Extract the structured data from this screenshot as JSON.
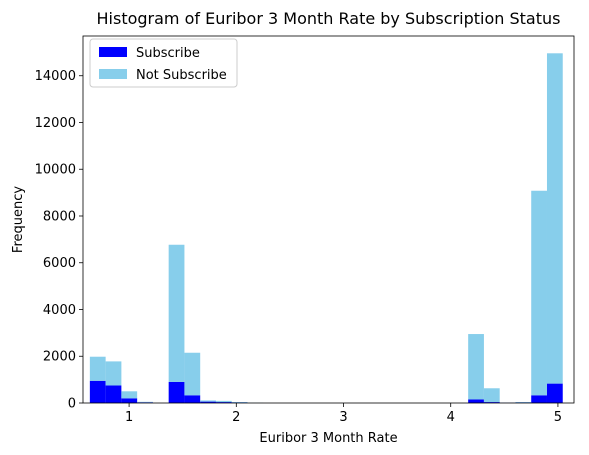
{
  "chart_data": {
    "type": "bar",
    "title": "Histogram of Euribor 3 Month Rate by Subscription Status",
    "xlabel": "Euribor 3 Month Rate",
    "ylabel": "Frequency",
    "xlim": [
      0.57,
      5.15
    ],
    "ylim": [
      0,
      15700
    ],
    "x_ticks": [
      1,
      2,
      3,
      4,
      5
    ],
    "y_ticks": [
      0,
      2000,
      4000,
      6000,
      8000,
      10000,
      12000,
      14000
    ],
    "grid": false,
    "legend_position": "top-left",
    "stacked": true,
    "bin_range": [
      0.634,
      5.045
    ],
    "bin_count": 30,
    "series": [
      {
        "name": "Subscribe",
        "color": "#0000ff",
        "values": [
          950,
          750,
          200,
          30,
          0,
          900,
          330,
          60,
          40,
          20,
          0,
          0,
          0,
          0,
          0,
          0,
          0,
          0,
          0,
          0,
          0,
          0,
          0,
          0,
          150,
          40,
          10,
          20,
          330,
          830
        ]
      },
      {
        "name": "Not Subscribe",
        "color": "#87ceeb",
        "values": [
          1030,
          1030,
          300,
          20,
          0,
          5870,
          1820,
          50,
          50,
          20,
          10,
          0,
          0,
          0,
          0,
          0,
          0,
          0,
          0,
          0,
          0,
          0,
          0,
          0,
          2800,
          590,
          10,
          20,
          8750,
          14130
        ]
      }
    ]
  }
}
